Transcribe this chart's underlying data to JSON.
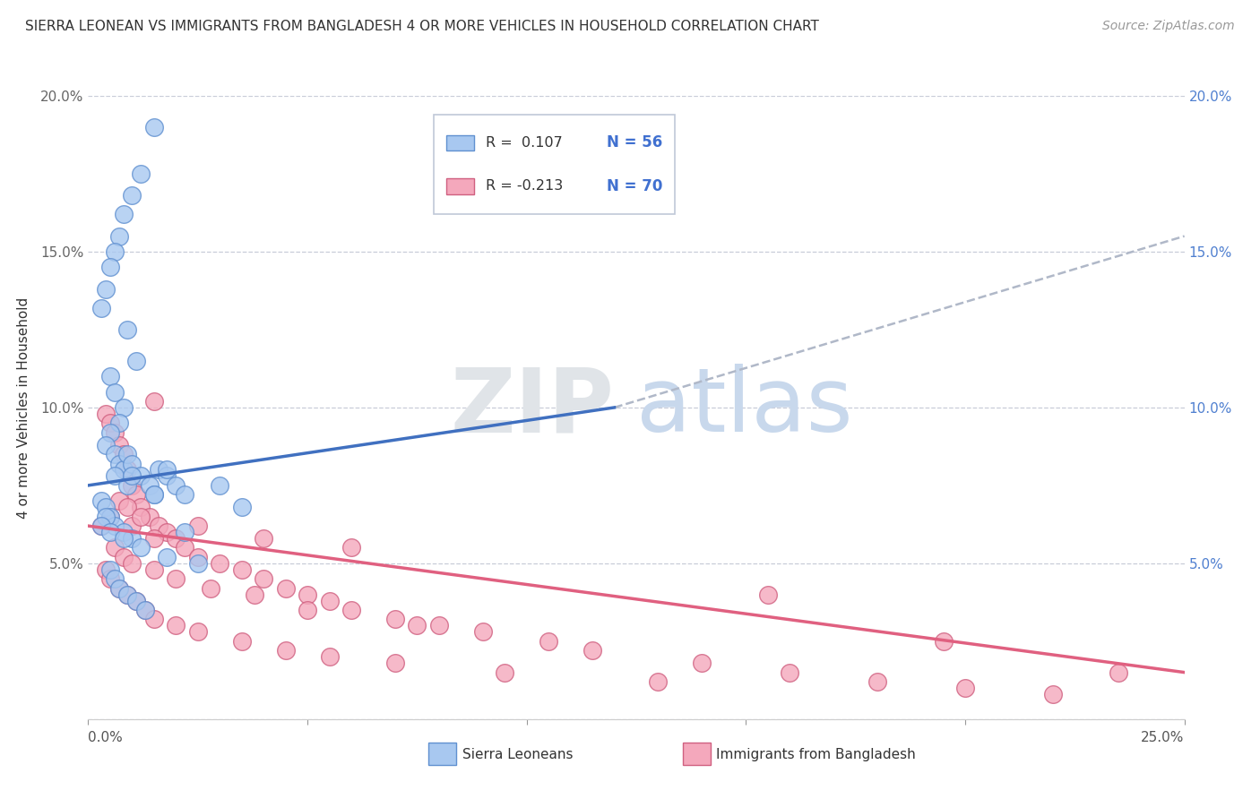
{
  "title": "SIERRA LEONEAN VS IMMIGRANTS FROM BANGLADESH 4 OR MORE VEHICLES IN HOUSEHOLD CORRELATION CHART",
  "source": "Source: ZipAtlas.com",
  "ylabel": "4 or more Vehicles in Household",
  "xlim": [
    0.0,
    25.0
  ],
  "ylim": [
    0.0,
    20.0
  ],
  "yticks": [
    0.0,
    5.0,
    10.0,
    15.0,
    20.0
  ],
  "ytick_labels_left": [
    "",
    "5.0%",
    "10.0%",
    "15.0%",
    "20.0%"
  ],
  "ytick_labels_right": [
    "",
    "5.0%",
    "10.0%",
    "15.0%",
    "20.0%"
  ],
  "color_blue": "#a8c8f0",
  "color_pink": "#f4a8bc",
  "edge_blue": "#6090d0",
  "edge_pink": "#d06080",
  "line_color_blue": "#4070c0",
  "line_color_pink": "#e06080",
  "dash_color": "#b0b8c8",
  "background_color": "#ffffff",
  "grid_color": "#c8ccd8",
  "blue_scatter_x": [
    1.5,
    1.2,
    1.0,
    0.8,
    0.7,
    0.6,
    0.5,
    0.4,
    0.3,
    0.9,
    1.1,
    0.5,
    0.6,
    0.8,
    0.7,
    0.5,
    0.4,
    0.6,
    0.7,
    0.8,
    0.9,
    1.0,
    1.2,
    1.4,
    1.5,
    1.6,
    1.8,
    2.0,
    2.2,
    0.3,
    0.4,
    0.5,
    0.6,
    0.8,
    1.0,
    1.2,
    1.8,
    2.5,
    3.0,
    0.5,
    0.6,
    0.7,
    0.9,
    1.1,
    1.3,
    0.4,
    0.3,
    0.5,
    0.8,
    1.5,
    2.2,
    0.6,
    3.5,
    0.9,
    1.0,
    1.8
  ],
  "blue_scatter_y": [
    19.0,
    17.5,
    16.8,
    16.2,
    15.5,
    15.0,
    14.5,
    13.8,
    13.2,
    12.5,
    11.5,
    11.0,
    10.5,
    10.0,
    9.5,
    9.2,
    8.8,
    8.5,
    8.2,
    8.0,
    8.5,
    8.2,
    7.8,
    7.5,
    7.2,
    8.0,
    7.8,
    7.5,
    7.2,
    7.0,
    6.8,
    6.5,
    6.2,
    6.0,
    5.8,
    5.5,
    5.2,
    5.0,
    7.5,
    4.8,
    4.5,
    4.2,
    4.0,
    3.8,
    3.5,
    6.5,
    6.2,
    6.0,
    5.8,
    7.2,
    6.0,
    7.8,
    6.8,
    7.5,
    7.8,
    8.0
  ],
  "pink_scatter_x": [
    0.3,
    0.4,
    0.5,
    0.6,
    0.7,
    0.8,
    0.9,
    1.0,
    1.1,
    1.2,
    1.4,
    1.5,
    1.6,
    1.8,
    2.0,
    2.2,
    2.5,
    3.0,
    3.5,
    4.0,
    4.5,
    5.0,
    5.5,
    6.0,
    7.0,
    8.0,
    9.0,
    10.5,
    11.5,
    14.0,
    16.0,
    18.0,
    20.0,
    22.0,
    23.5,
    0.4,
    0.5,
    0.7,
    0.9,
    1.1,
    1.3,
    1.5,
    2.0,
    2.5,
    3.5,
    4.5,
    5.5,
    7.0,
    9.5,
    13.0,
    0.6,
    0.8,
    1.0,
    1.5,
    2.0,
    2.8,
    3.8,
    5.0,
    7.5,
    15.5,
    19.5,
    0.5,
    1.0,
    1.5,
    0.7,
    0.9,
    1.2,
    2.5,
    4.0,
    6.0
  ],
  "pink_scatter_y": [
    6.2,
    9.8,
    9.5,
    9.2,
    8.8,
    8.5,
    8.0,
    7.5,
    7.2,
    6.8,
    6.5,
    10.2,
    6.2,
    6.0,
    5.8,
    5.5,
    5.2,
    5.0,
    4.8,
    4.5,
    4.2,
    4.0,
    3.8,
    3.5,
    3.2,
    3.0,
    2.8,
    2.5,
    2.2,
    1.8,
    1.5,
    1.2,
    1.0,
    0.8,
    1.5,
    4.8,
    4.5,
    4.2,
    4.0,
    3.8,
    3.5,
    3.2,
    3.0,
    2.8,
    2.5,
    2.2,
    2.0,
    1.8,
    1.5,
    1.2,
    5.5,
    5.2,
    5.0,
    4.8,
    4.5,
    4.2,
    4.0,
    3.5,
    3.0,
    4.0,
    2.5,
    6.5,
    6.2,
    5.8,
    7.0,
    6.8,
    6.5,
    6.2,
    5.8,
    5.5
  ],
  "blue_line_x0": 0.0,
  "blue_line_x1": 12.0,
  "blue_line_y0": 7.5,
  "blue_line_y1": 10.0,
  "dash_line_x0": 12.0,
  "dash_line_x1": 25.0,
  "dash_line_y0": 10.0,
  "dash_line_y1": 15.5,
  "pink_line_x0": 0.0,
  "pink_line_x1": 25.0,
  "pink_line_y0": 6.2,
  "pink_line_y1": 1.5,
  "legend_r1": "R =  0.107",
  "legend_n1": "N = 56",
  "legend_r2": "R = -0.213",
  "legend_n2": "N = 70"
}
